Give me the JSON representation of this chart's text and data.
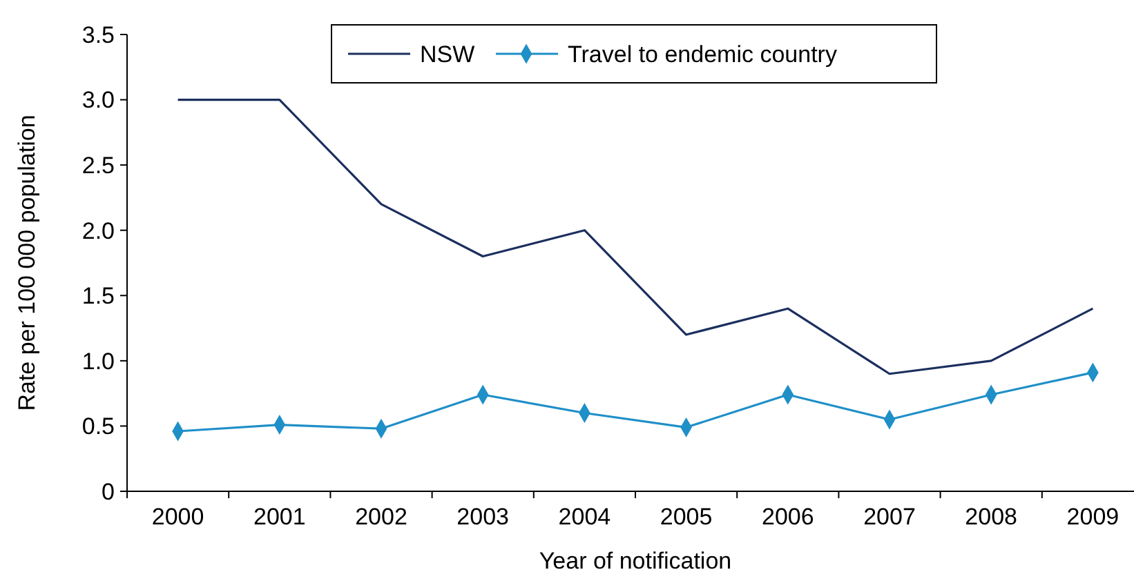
{
  "chart_data": {
    "type": "line",
    "xlabel": "Year of notification",
    "ylabel": "Rate per 100 000 population",
    "categories": [
      "2000",
      "2001",
      "2002",
      "2003",
      "2004",
      "2005",
      "2006",
      "2007",
      "2008",
      "2009"
    ],
    "series": [
      {
        "name": "NSW",
        "color": "#1b2f5e",
        "marker": "none",
        "values": [
          3.0,
          3.0,
          2.2,
          1.8,
          2.0,
          1.2,
          1.4,
          0.9,
          1.0,
          1.4
        ]
      },
      {
        "name": "Travel to endemic country",
        "color": "#1f8fc8",
        "marker": "diamond",
        "values": [
          0.46,
          0.51,
          0.48,
          0.74,
          0.6,
          0.49,
          0.74,
          0.55,
          0.74,
          0.91
        ]
      }
    ],
    "ylim": [
      0,
      3.5
    ],
    "yticks": [
      0,
      0.5,
      {
        "value": 1,
        "label": "1.0"
      },
      1.5,
      {
        "value": 2,
        "label": "2.0"
      },
      2.5,
      {
        "value": 3,
        "label": "3.0"
      },
      3.5
    ],
    "grid": false,
    "legend": "top"
  }
}
